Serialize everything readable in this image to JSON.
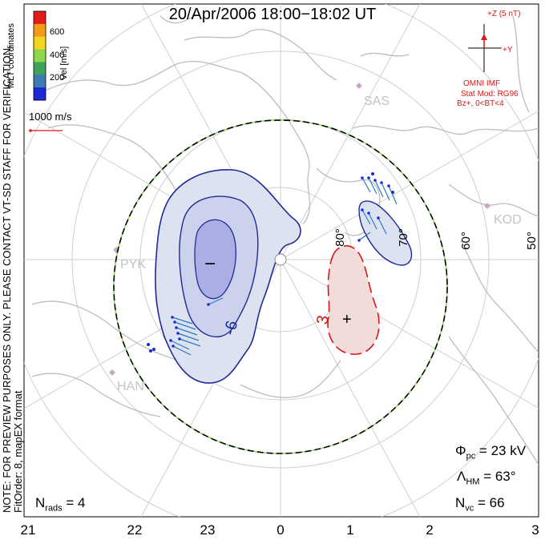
{
  "title": "20/Apr/2006 18:00−18:02 UT",
  "mlt_labels": [
    "21",
    "22",
    "23",
    "0",
    "1",
    "2",
    "3"
  ],
  "colorbar": {
    "unit": "Vel [m/s]",
    "ticks": [
      "600",
      "400",
      "200"
    ],
    "colors": [
      "#e21a1a",
      "#f59a18",
      "#f5d61e",
      "#8cd84a",
      "#3fa35a",
      "#3d7bb0",
      "#1a2ad6"
    ]
  },
  "coord_label": "MLT coordinates",
  "scale_vector": "1000 m/s",
  "side_note": {
    "line1": "NOTE: FOR PREVIEW PURPOSES ONLY. PLEASE CONTACT VT-SD STAFF FOR VERIFICATION.",
    "line2": "FitOrder: 8, mapEX format"
  },
  "imf": {
    "z_label": "+Z (5 nT)",
    "y_label": "+Y",
    "source": "OMNI IMF",
    "model": "Stat Mod: RG96",
    "condition": "Bz+, 0<BT<4"
  },
  "stations": [
    "SAS",
    "KOD",
    "PYK",
    "HAN"
  ],
  "latitude_labels": [
    "80°",
    "70°",
    "60°",
    "50°"
  ],
  "contour_labels": [
    "-6",
    "3"
  ],
  "extrema": {
    "min": "−",
    "max": "+"
  },
  "stats": {
    "phi_pc": "Φpc = 23 kV",
    "lambda_hm": "ΛHM = 63°",
    "n_vc": "Nvc = 66",
    "n_rads": "Nrads = 4"
  },
  "stats_parts": {
    "phi_sym": "Φ",
    "phi_sub": "pc",
    "phi_val": " = 23 kV",
    "lam_sym": "Λ",
    "lam_sub": "HM",
    "lam_val": " = 63°",
    "nvc_sym": "N",
    "nvc_sub": "vc",
    "nvc_val": " = 66",
    "nr_sym": "N",
    "nr_sub": "rads",
    "nr_val": " = 4"
  }
}
